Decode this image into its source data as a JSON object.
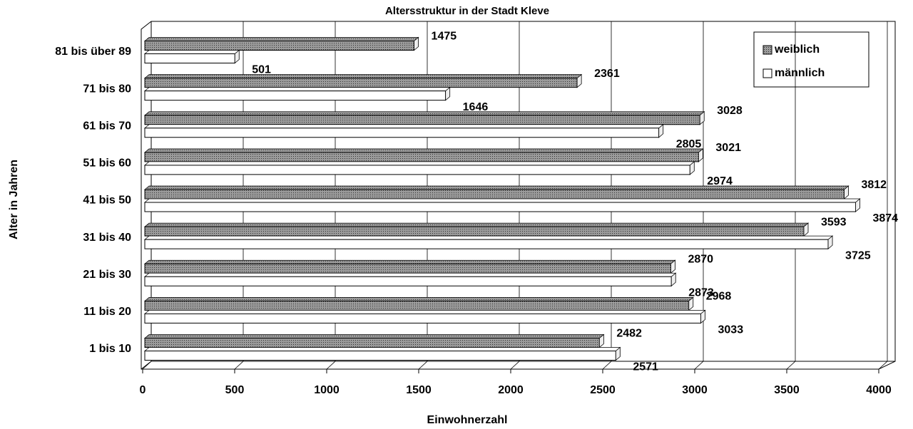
{
  "chart_data": {
    "type": "bar",
    "orientation": "horizontal",
    "title": "Altersstruktur in der Stadt Kleve",
    "x_label": "Einwohnerzahl",
    "y_label": "Alter in Jahren",
    "categories": [
      "1 bis 10",
      "11 bis 20",
      "21 bis 30",
      "31 bis 40",
      "41 bis 50",
      "51 bis 60",
      "61 bis 70",
      "71 bis 80",
      "81 bis über 89"
    ],
    "series": [
      {
        "name": "weiblich",
        "color": "#9a9a9a",
        "values": [
          2482,
          2968,
          2870,
          3593,
          3812,
          3021,
          3028,
          2361,
          1475
        ]
      },
      {
        "name": "männlich",
        "color": "#ffffff",
        "values": [
          2571,
          3033,
          2873,
          3725,
          3874,
          2974,
          2805,
          1646,
          501
        ]
      }
    ],
    "xlim": [
      0,
      4000
    ],
    "xticks": [
      0,
      500,
      1000,
      1500,
      2000,
      2500,
      3000,
      3500,
      4000
    ],
    "grid": true,
    "legend": "top-right"
  }
}
